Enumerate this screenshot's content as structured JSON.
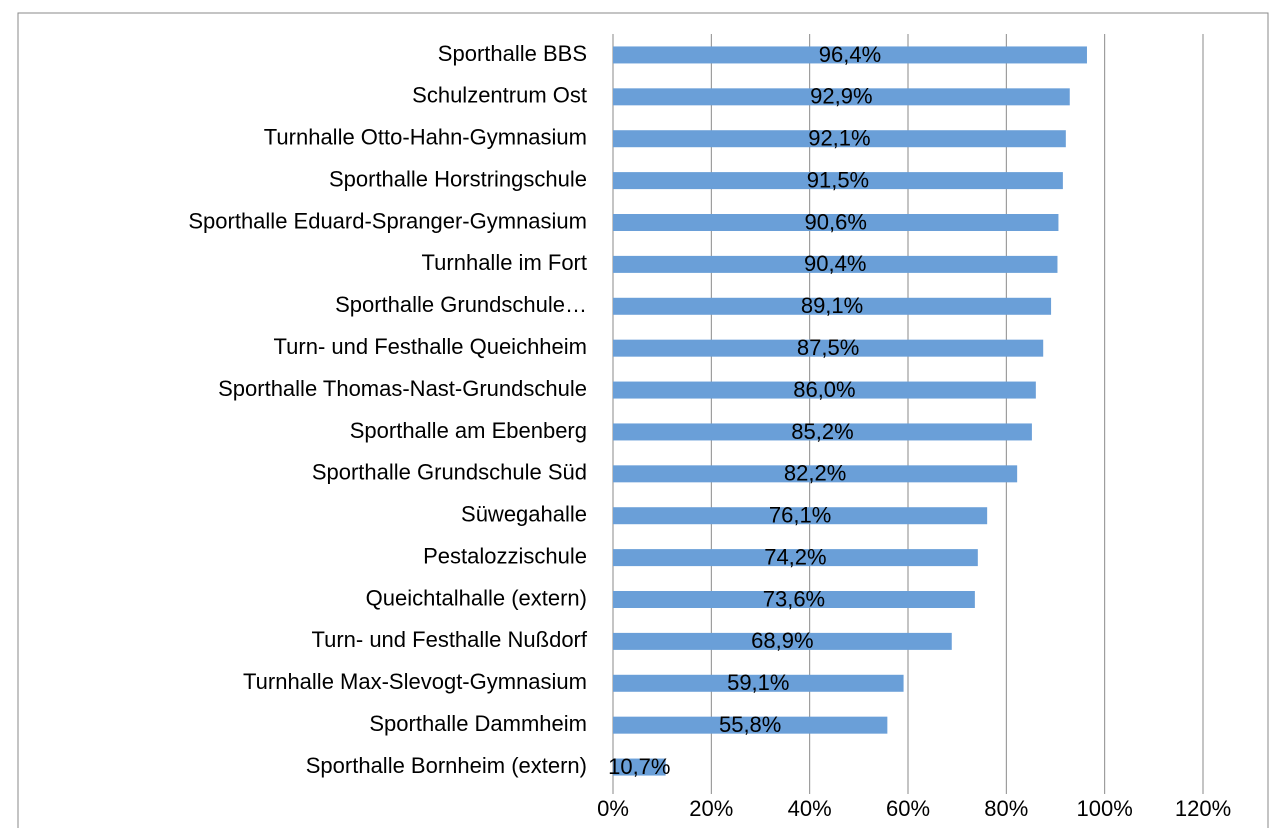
{
  "chart_data": {
    "type": "bar",
    "orientation": "horizontal",
    "categories": [
      "Sporthalle BBS",
      "Schulzentrum Ost",
      "Turnhalle Otto-Hahn-Gymnasium",
      "Sporthalle Horstringschule",
      "Sporthalle Eduard-Spranger-Gymnasium",
      "Turnhalle im Fort",
      "Sporthalle Grundschule…",
      "Turn- und Festhalle Queichheim",
      "Sporthalle Thomas-Nast-Grundschule",
      "Sporthalle am Ebenberg",
      "Sporthalle Grundschule Süd",
      "Süwegahalle",
      "Pestalozzischule",
      "Queichtalhalle (extern)",
      "Turn- und Festhalle Nußdorf",
      "Turnhalle Max-Slevogt-Gymnasium",
      "Sporthalle Dammheim",
      "Sporthalle Bornheim (extern)"
    ],
    "values": [
      96.4,
      92.9,
      92.1,
      91.5,
      90.6,
      90.4,
      89.1,
      87.5,
      86.0,
      85.2,
      82.2,
      76.1,
      74.2,
      73.6,
      68.9,
      59.1,
      55.8,
      10.7
    ],
    "value_labels": [
      "96,4%",
      "92,9%",
      "92,1%",
      "91,5%",
      "90,6%",
      "90,4%",
      "89,1%",
      "87,5%",
      "86,0%",
      "85,2%",
      "82,2%",
      "76,1%",
      "74,2%",
      "73,6%",
      "68,9%",
      "59,1%",
      "55,8%",
      "10,7%"
    ],
    "color": "#6a9fd8",
    "xlim": [
      0,
      120
    ],
    "xticks": [
      {
        "value": 0,
        "label": "0%"
      },
      {
        "value": 20,
        "label": "20%"
      },
      {
        "value": 40,
        "label": "40%"
      },
      {
        "value": 60,
        "label": "60%"
      },
      {
        "value": 80,
        "label": "80%"
      },
      {
        "value": 100,
        "label": "100%"
      },
      {
        "value": 120,
        "label": "120%"
      }
    ],
    "grid": true
  }
}
